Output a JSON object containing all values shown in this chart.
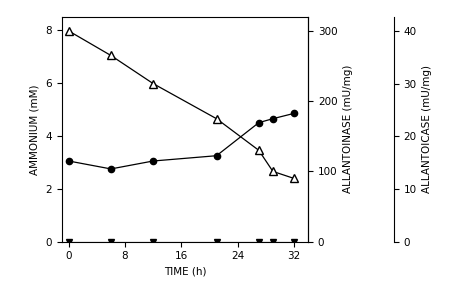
{
  "time_ammonium": [
    0,
    6,
    12,
    21,
    27,
    29,
    32
  ],
  "ammonium": [
    3.05,
    2.75,
    3.05,
    3.25,
    4.5,
    4.65,
    4.85
  ],
  "time_allantoinase": [
    0,
    6,
    12,
    21,
    27,
    29,
    32
  ],
  "allantoinase": [
    300,
    265,
    225,
    175,
    130,
    100,
    90
  ],
  "time_allantoicase": [
    0,
    6,
    12,
    21,
    27,
    29,
    32
  ],
  "allantoicase": [
    0,
    0,
    0,
    0,
    0,
    0,
    0
  ],
  "xlim": [
    -1,
    34
  ],
  "ylim_left": [
    0,
    8.5
  ],
  "ylim_middle": [
    0,
    320
  ],
  "ylim_right": [
    0,
    42.67
  ],
  "xlabel": "TIME (h)",
  "ylabel_left": "AMMONIUM (mM)",
  "ylabel_middle": "ALLANTOINASE (mU/mg)",
  "ylabel_right": "ALLANTOICASE (mU/mg)",
  "xticks": [
    0,
    8,
    16,
    24,
    32
  ],
  "yticks_left": [
    0,
    2,
    4,
    6,
    8
  ],
  "yticks_middle": [
    0,
    100,
    200,
    300
  ],
  "yticks_right": [
    0,
    10,
    20,
    30,
    40
  ],
  "bg_color": "#ffffff",
  "line_color": "#000000",
  "font_size": 7.5
}
